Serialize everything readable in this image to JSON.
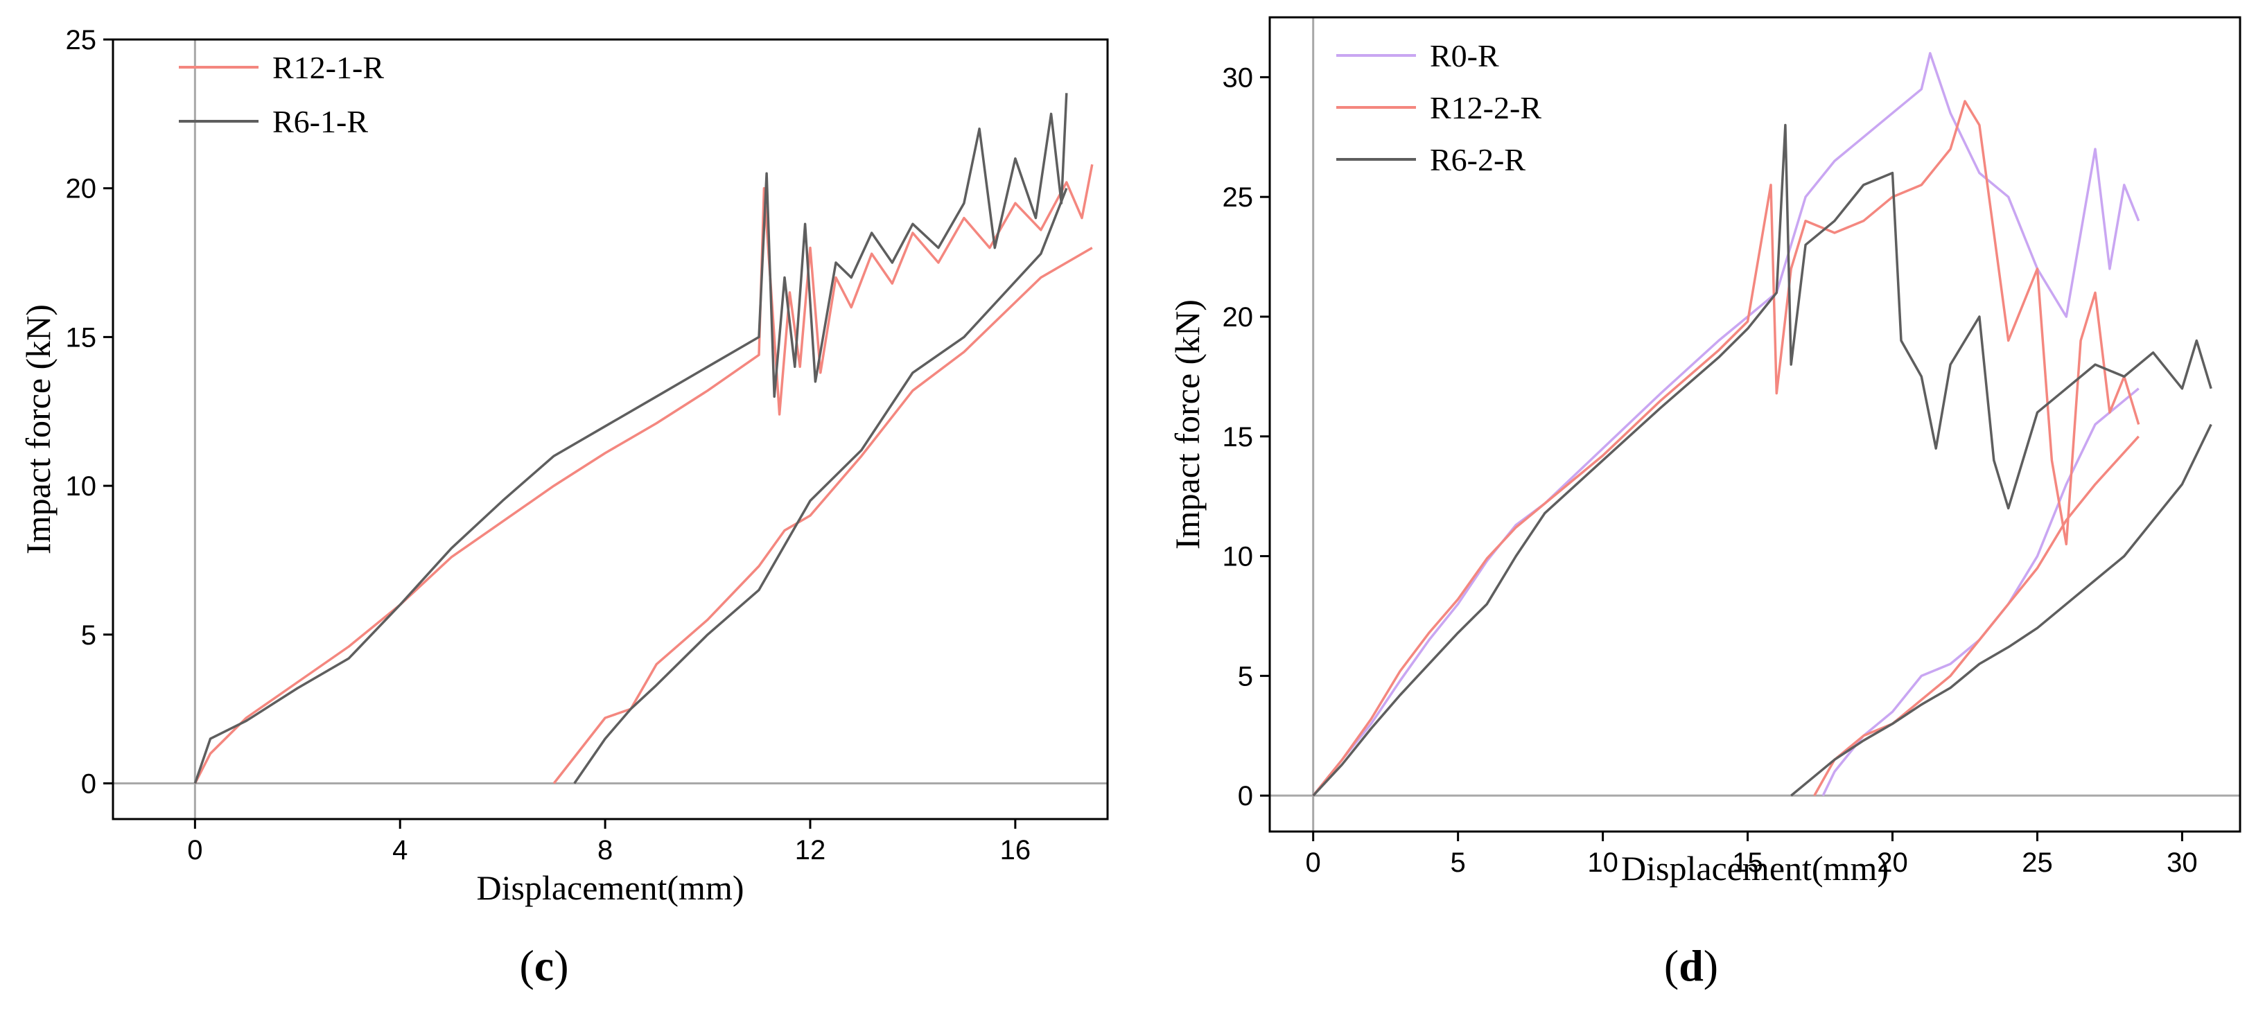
{
  "chart_data": [
    {
      "id": "c",
      "type": "line",
      "panel_label": "c",
      "xlabel": "Displacement(mm)",
      "ylabel": "Impact force (kN)",
      "xlim": [
        -1.6,
        17.8
      ],
      "ylim": [
        -1.2,
        25
      ],
      "xticks": [
        0,
        4,
        8,
        12,
        16
      ],
      "yticks": [
        0,
        5,
        10,
        15,
        20,
        25
      ],
      "grid": false,
      "legend": "top-left",
      "series": [
        {
          "name": "R12-1-R",
          "color": "#f4877f",
          "loading": [
            [
              0,
              0
            ],
            [
              0.3,
              1.0
            ],
            [
              1,
              2.2
            ],
            [
              2,
              3.4
            ],
            [
              3,
              4.6
            ],
            [
              4,
              6.0
            ],
            [
              5,
              7.6
            ],
            [
              6,
              8.8
            ],
            [
              7,
              10.0
            ],
            [
              8,
              11.1
            ],
            [
              9,
              12.1
            ],
            [
              10,
              13.2
            ],
            [
              11,
              14.4
            ],
            [
              11.1,
              20.0
            ],
            [
              11.3,
              15.0
            ],
            [
              11.4,
              12.4
            ],
            [
              11.6,
              16.5
            ],
            [
              11.8,
              14.0
            ],
            [
              12,
              18.0
            ],
            [
              12.2,
              13.8
            ],
            [
              12.5,
              17.0
            ],
            [
              12.8,
              16.0
            ],
            [
              13.2,
              17.8
            ],
            [
              13.6,
              16.8
            ],
            [
              14,
              18.5
            ],
            [
              14.5,
              17.5
            ],
            [
              15,
              19.0
            ],
            [
              15.5,
              18.0
            ],
            [
              16,
              19.5
            ],
            [
              16.5,
              18.6
            ],
            [
              17,
              20.2
            ],
            [
              17.3,
              19.0
            ],
            [
              17.5,
              20.8
            ]
          ],
          "unloading": [
            [
              17.5,
              18.0
            ],
            [
              16.5,
              17.0
            ],
            [
              15,
              14.5
            ],
            [
              14,
              13.2
            ],
            [
              13,
              11.0
            ],
            [
              12,
              9.0
            ],
            [
              11.5,
              8.5
            ],
            [
              11,
              7.3
            ],
            [
              10,
              5.5
            ],
            [
              9,
              4.0
            ],
            [
              8.5,
              2.5
            ],
            [
              8,
              2.2
            ],
            [
              7,
              0
            ]
          ]
        },
        {
          "name": "R6-1-R",
          "color": "#5e5e5e",
          "loading": [
            [
              0,
              0
            ],
            [
              0.3,
              1.5
            ],
            [
              1,
              2.1
            ],
            [
              2,
              3.2
            ],
            [
              3,
              4.2
            ],
            [
              4,
              6.0
            ],
            [
              5,
              7.9
            ],
            [
              6,
              9.5
            ],
            [
              7,
              11.0
            ],
            [
              8,
              12.0
            ],
            [
              9,
              13.0
            ],
            [
              10,
              14.0
            ],
            [
              11,
              15.0
            ],
            [
              11.15,
              20.5
            ],
            [
              11.3,
              13.0
            ],
            [
              11.5,
              17.0
            ],
            [
              11.7,
              14.0
            ],
            [
              11.9,
              18.8
            ],
            [
              12.1,
              13.5
            ],
            [
              12.5,
              17.5
            ],
            [
              12.8,
              17.0
            ],
            [
              13.2,
              18.5
            ],
            [
              13.6,
              17.5
            ],
            [
              14,
              18.8
            ],
            [
              14.5,
              18.0
            ],
            [
              15,
              19.5
            ],
            [
              15.3,
              22.0
            ],
            [
              15.6,
              18.0
            ],
            [
              16,
              21.0
            ],
            [
              16.4,
              19.0
            ],
            [
              16.7,
              22.5
            ],
            [
              16.9,
              19.5
            ],
            [
              17.0,
              23.2
            ]
          ],
          "unloading": [
            [
              17.0,
              20.0
            ],
            [
              16.5,
              17.8
            ],
            [
              15,
              15.0
            ],
            [
              14,
              13.8
            ],
            [
              13,
              11.2
            ],
            [
              12,
              9.5
            ],
            [
              11.5,
              8.0
            ],
            [
              11,
              6.5
            ],
            [
              10,
              5.0
            ],
            [
              9,
              3.3
            ],
            [
              8.5,
              2.5
            ],
            [
              8,
              1.5
            ],
            [
              7.4,
              0
            ]
          ]
        }
      ]
    },
    {
      "id": "d",
      "type": "line",
      "panel_label": "d",
      "xlabel": "Displacement(mm)",
      "ylabel": "Impact force (kN)",
      "xlim": [
        -1.5,
        32
      ],
      "ylim": [
        -1.5,
        32.5
      ],
      "xticks": [
        0,
        5,
        10,
        15,
        20,
        25,
        30
      ],
      "yticks": [
        0,
        5,
        10,
        15,
        20,
        25,
        30
      ],
      "grid": false,
      "legend": "top-left",
      "series": [
        {
          "name": "R0-R",
          "color": "#c9a6f2",
          "loading": [
            [
              0,
              0
            ],
            [
              1,
              1.5
            ],
            [
              2,
              3.0
            ],
            [
              3,
              4.8
            ],
            [
              4,
              6.5
            ],
            [
              5,
              8.0
            ],
            [
              6,
              9.8
            ],
            [
              7,
              11.3
            ],
            [
              8,
              12.2
            ],
            [
              10,
              14.5
            ],
            [
              12,
              16.8
            ],
            [
              14,
              19.0
            ],
            [
              15,
              20.0
            ],
            [
              16,
              21.0
            ],
            [
              17,
              25.0
            ],
            [
              18,
              26.5
            ],
            [
              19,
              27.5
            ],
            [
              20,
              28.5
            ],
            [
              21,
              29.5
            ],
            [
              21.3,
              31.0
            ],
            [
              22,
              28.5
            ],
            [
              23,
              26.0
            ],
            [
              24,
              25.0
            ],
            [
              25,
              22.0
            ],
            [
              26,
              20.0
            ],
            [
              27,
              27.0
            ],
            [
              27.5,
              22.0
            ],
            [
              28,
              25.5
            ],
            [
              28.5,
              24.0
            ]
          ],
          "unloading": [
            [
              28.5,
              17.0
            ],
            [
              27,
              15.5
            ],
            [
              26,
              13.0
            ],
            [
              25,
              10.0
            ],
            [
              24,
              8.0
            ],
            [
              23,
              6.5
            ],
            [
              22,
              5.5
            ],
            [
              21,
              5.0
            ],
            [
              20,
              3.5
            ],
            [
              19,
              2.5
            ],
            [
              18,
              1.0
            ],
            [
              17.6,
              0
            ]
          ]
        },
        {
          "name": "R12-2-R",
          "color": "#f4877f",
          "loading": [
            [
              0,
              0
            ],
            [
              1,
              1.5
            ],
            [
              2,
              3.2
            ],
            [
              3,
              5.2
            ],
            [
              4,
              6.8
            ],
            [
              5,
              8.2
            ],
            [
              6,
              9.9
            ],
            [
              7,
              11.2
            ],
            [
              8,
              12.2
            ],
            [
              10,
              14.2
            ],
            [
              12,
              16.5
            ],
            [
              14,
              18.6
            ],
            [
              15,
              19.8
            ],
            [
              15.8,
              25.5
            ],
            [
              16,
              16.8
            ],
            [
              16.5,
              22.0
            ],
            [
              17,
              24.0
            ],
            [
              18,
              23.5
            ],
            [
              19,
              24.0
            ],
            [
              20,
              25.0
            ],
            [
              21,
              25.5
            ],
            [
              22,
              27.0
            ],
            [
              22.5,
              29.0
            ],
            [
              23,
              28.0
            ],
            [
              24,
              19.0
            ],
            [
              25,
              22.0
            ],
            [
              25.5,
              14.0
            ],
            [
              26,
              10.5
            ],
            [
              26.5,
              19.0
            ],
            [
              27,
              21.0
            ],
            [
              27.5,
              16.0
            ],
            [
              28,
              17.5
            ],
            [
              28.5,
              15.5
            ]
          ],
          "unloading": [
            [
              28.5,
              15.0
            ],
            [
              27,
              13.0
            ],
            [
              26,
              11.5
            ],
            [
              25,
              9.5
            ],
            [
              24,
              8.0
            ],
            [
              23,
              6.5
            ],
            [
              22,
              5.0
            ],
            [
              21,
              4.0
            ],
            [
              20,
              3.0
            ],
            [
              19,
              2.5
            ],
            [
              18,
              1.5
            ],
            [
              17.3,
              0
            ]
          ]
        },
        {
          "name": "R6-2-R",
          "color": "#5e5e5e",
          "loading": [
            [
              0,
              0
            ],
            [
              1,
              1.3
            ],
            [
              2,
              2.8
            ],
            [
              3,
              4.2
            ],
            [
              4,
              5.5
            ],
            [
              5,
              6.8
            ],
            [
              6,
              8.0
            ],
            [
              7,
              10.0
            ],
            [
              8,
              11.8
            ],
            [
              10,
              14.0
            ],
            [
              12,
              16.2
            ],
            [
              14,
              18.3
            ],
            [
              15,
              19.5
            ],
            [
              16,
              21.0
            ],
            [
              16.3,
              28.0
            ],
            [
              16.5,
              18.0
            ],
            [
              17,
              23.0
            ],
            [
              18,
              24.0
            ],
            [
              19,
              25.5
            ],
            [
              20,
              26.0
            ],
            [
              20.3,
              19.0
            ],
            [
              21,
              17.5
            ],
            [
              21.5,
              14.5
            ],
            [
              22,
              18.0
            ],
            [
              23,
              20.0
            ],
            [
              23.5,
              14.0
            ],
            [
              24,
              12.0
            ],
            [
              25,
              16.0
            ],
            [
              26,
              17.0
            ],
            [
              27,
              18.0
            ],
            [
              28,
              17.5
            ],
            [
              29,
              18.5
            ],
            [
              30,
              17.0
            ],
            [
              30.5,
              19.0
            ],
            [
              31,
              17.0
            ]
          ],
          "unloading": [
            [
              31,
              15.5
            ],
            [
              30,
              13.0
            ],
            [
              29,
              11.5
            ],
            [
              28,
              10.0
            ],
            [
              27,
              9.0
            ],
            [
              26,
              8.0
            ],
            [
              25,
              7.0
            ],
            [
              24,
              6.2
            ],
            [
              23,
              5.5
            ],
            [
              22,
              4.5
            ],
            [
              21,
              3.8
            ],
            [
              20,
              3.0
            ],
            [
              19,
              2.3
            ],
            [
              18,
              1.5
            ],
            [
              16.5,
              0
            ]
          ]
        }
      ]
    }
  ]
}
